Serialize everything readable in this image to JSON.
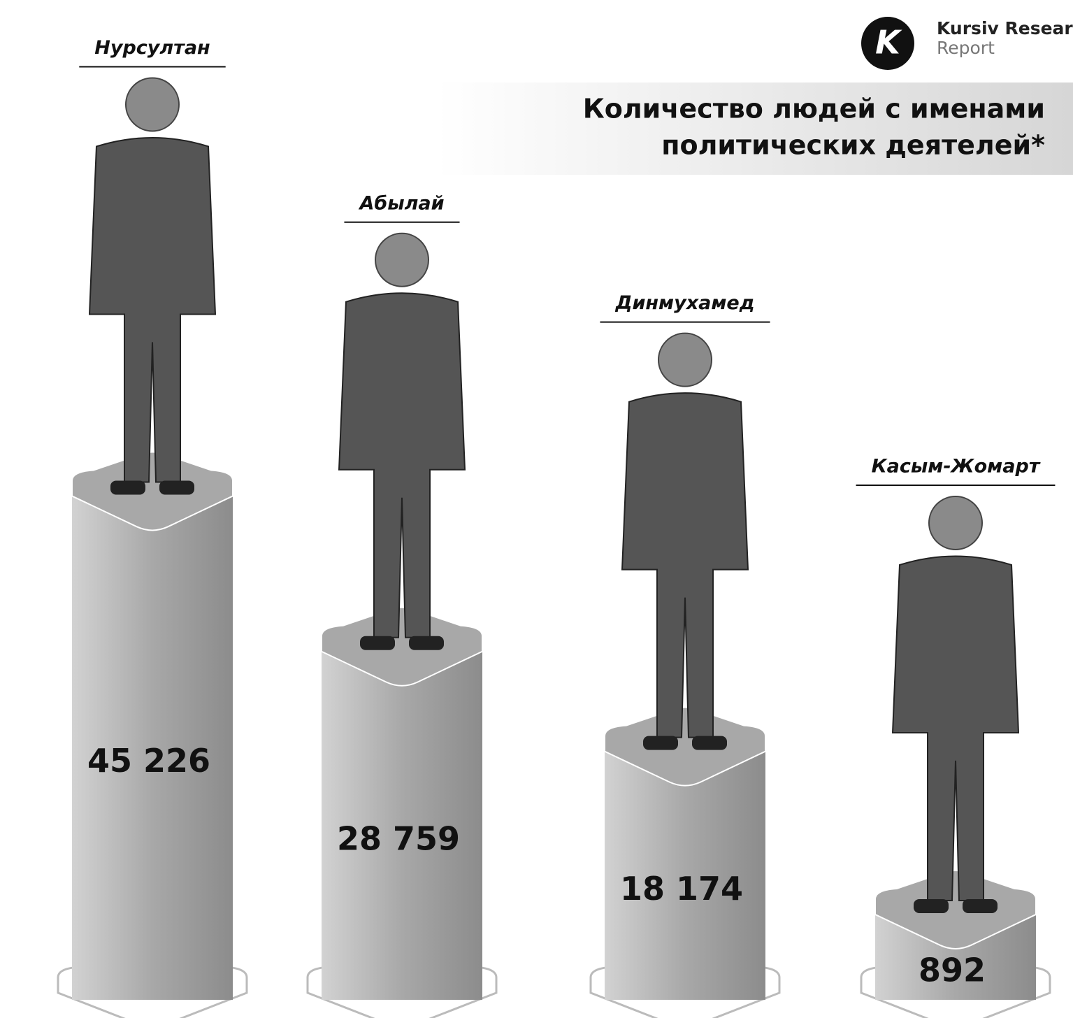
{
  "header": {
    "logo": "K",
    "brand": "Kursiv Research",
    "sub": "Report"
  },
  "chart_data": {
    "type": "bar",
    "title": [
      "Количество людей с именами",
      "политических деятелей*"
    ],
    "categories": [
      "Нурсултан",
      "Абылай",
      "Динмухамед",
      "Касым-Жомарт"
    ],
    "values": [
      45226,
      28759,
      18174,
      892
    ],
    "value_labels": [
      "45 226",
      "28 759",
      "18 174",
      "892"
    ],
    "color": "#a8a8a8"
  }
}
